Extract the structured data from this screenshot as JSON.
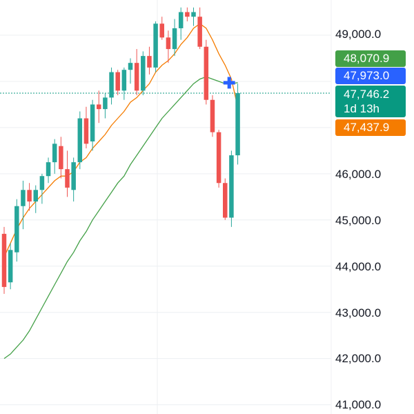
{
  "chart_data": {
    "type": "candlestick",
    "title": "",
    "xlabel": "",
    "ylabel": "",
    "ylim": [
      40900,
      49600
    ],
    "grid": true,
    "y_ticks": [
      "49,000.0",
      "46,000.0",
      "45,000.0",
      "44,000.0",
      "43,000.0",
      "42,000.0",
      "41,000.0"
    ],
    "colors": {
      "up": "#26a69a",
      "down": "#ef5350",
      "ma_fast": "#f57c00",
      "ma_slow": "#43a047",
      "current": "#089981"
    },
    "candles": [
      {
        "o": 44700,
        "h": 44850,
        "l": 43400,
        "c": 43550
      },
      {
        "o": 43650,
        "h": 44500,
        "l": 43500,
        "c": 44350
      },
      {
        "o": 44300,
        "h": 45450,
        "l": 44100,
        "c": 45300
      },
      {
        "o": 45300,
        "h": 45850,
        "l": 44800,
        "c": 45650
      },
      {
        "o": 45650,
        "h": 45800,
        "l": 45200,
        "c": 45400
      },
      {
        "o": 45400,
        "h": 45750,
        "l": 45150,
        "c": 45650
      },
      {
        "o": 45650,
        "h": 46000,
        "l": 45350,
        "c": 45950
      },
      {
        "o": 45950,
        "h": 46350,
        "l": 45800,
        "c": 46250
      },
      {
        "o": 46250,
        "h": 46750,
        "l": 46000,
        "c": 46650
      },
      {
        "o": 46600,
        "h": 46800,
        "l": 45900,
        "c": 46100
      },
      {
        "o": 46100,
        "h": 46500,
        "l": 45500,
        "c": 45700
      },
      {
        "o": 45650,
        "h": 46350,
        "l": 45400,
        "c": 46250
      },
      {
        "o": 46250,
        "h": 47350,
        "l": 46100,
        "c": 47200
      },
      {
        "o": 47200,
        "h": 47450,
        "l": 46550,
        "c": 46650
      },
      {
        "o": 46700,
        "h": 47600,
        "l": 46500,
        "c": 47500
      },
      {
        "o": 47500,
        "h": 47800,
        "l": 47100,
        "c": 47400
      },
      {
        "o": 47400,
        "h": 47750,
        "l": 47200,
        "c": 47650
      },
      {
        "o": 47650,
        "h": 48300,
        "l": 47500,
        "c": 48200
      },
      {
        "o": 48200,
        "h": 48250,
        "l": 47700,
        "c": 47800
      },
      {
        "o": 47800,
        "h": 48300,
        "l": 47600,
        "c": 48250
      },
      {
        "o": 48250,
        "h": 48500,
        "l": 47950,
        "c": 48400
      },
      {
        "o": 48400,
        "h": 48700,
        "l": 47700,
        "c": 47800
      },
      {
        "o": 47800,
        "h": 48650,
        "l": 47700,
        "c": 48550
      },
      {
        "o": 48550,
        "h": 48750,
        "l": 48150,
        "c": 48300
      },
      {
        "o": 48300,
        "h": 49300,
        "l": 48200,
        "c": 49250
      },
      {
        "o": 49250,
        "h": 49400,
        "l": 48900,
        "c": 48950
      },
      {
        "o": 48950,
        "h": 49100,
        "l": 48400,
        "c": 48700
      },
      {
        "o": 48700,
        "h": 49350,
        "l": 48550,
        "c": 49150
      },
      {
        "o": 49150,
        "h": 49600,
        "l": 48900,
        "c": 49500
      },
      {
        "o": 49500,
        "h": 49600,
        "l": 49300,
        "c": 49400
      },
      {
        "o": 49400,
        "h": 49600,
        "l": 49200,
        "c": 49500
      },
      {
        "o": 49400,
        "h": 49600,
        "l": 48700,
        "c": 48750
      },
      {
        "o": 48750,
        "h": 48900,
        "l": 47500,
        "c": 47600
      },
      {
        "o": 47600,
        "h": 47700,
        "l": 46800,
        "c": 46900
      },
      {
        "o": 46900,
        "h": 46950,
        "l": 45700,
        "c": 45800
      },
      {
        "o": 45800,
        "h": 45900,
        "l": 45000,
        "c": 45050
      },
      {
        "o": 45050,
        "h": 46500,
        "l": 44850,
        "c": 46400
      },
      {
        "o": 46400,
        "h": 47950,
        "l": 46200,
        "c": 47746.2
      }
    ],
    "ma_fast": [
      44200,
      44500,
      44800,
      45050,
      45250,
      45400,
      45550,
      45700,
      45850,
      45950,
      45950,
      46050,
      46250,
      46350,
      46550,
      46700,
      46850,
      47050,
      47200,
      47350,
      47550,
      47650,
      47800,
      47950,
      48200,
      48350,
      48450,
      48600,
      48800,
      48950,
      49150,
      49250,
      49150,
      48900,
      48600,
      48350,
      48050,
      47437.9
    ],
    "ma_slow": [
      42000,
      42100,
      42250,
      42400,
      42600,
      42850,
      43100,
      43350,
      43600,
      43850,
      44100,
      44300,
      44550,
      44750,
      45000,
      45200,
      45400,
      45600,
      45800,
      45950,
      46200,
      46400,
      46600,
      46800,
      47000,
      47200,
      47350,
      47500,
      47650,
      47800,
      47950,
      48050,
      48100,
      48050,
      48000,
      47950,
      47950,
      47973.0
    ]
  },
  "price_tags": {
    "tag1": "48,070.9",
    "tag2": "47,973.0",
    "tag3_price": "47,746.2",
    "tag3_time": "1d 13h",
    "tag4": "47,437.9"
  },
  "icons": {
    "crosshair": "plus-cursor-icon"
  }
}
